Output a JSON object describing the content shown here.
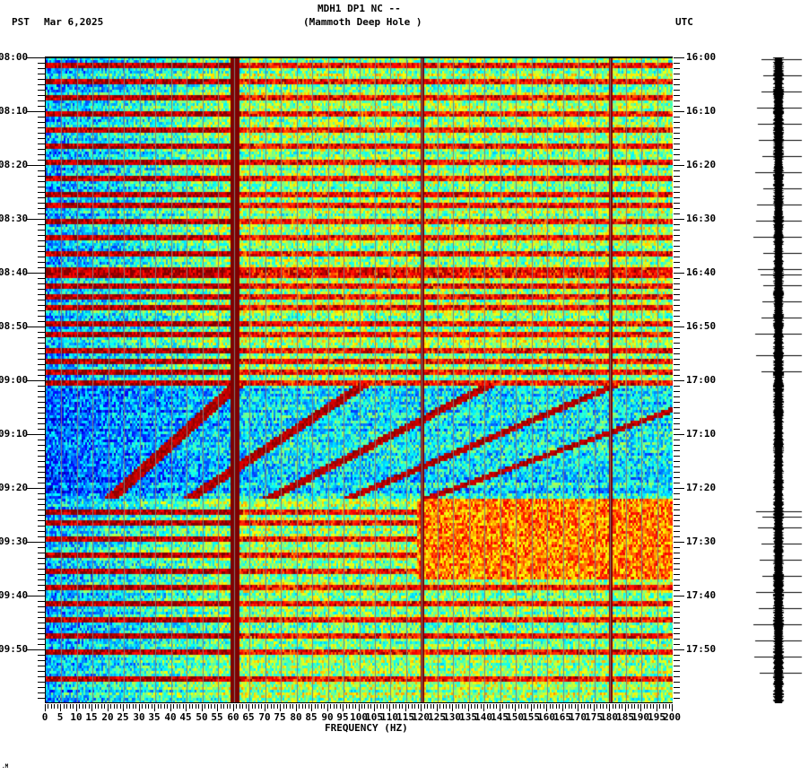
{
  "header": {
    "station": "MDH1 DP1 NC --",
    "location": "(Mammoth Deep Hole )",
    "tz_left": "PST",
    "date": "Mar 6,2025",
    "tz_right": "UTC"
  },
  "footer": {
    "corner_mark": ".M"
  },
  "chart_data": {
    "type": "heatmap",
    "title": "MDH1 DP1 NC -- (Mammoth Deep Hole )",
    "subtitle": "Mar 6,2025",
    "xlabel": "FREQUENCY (HZ)",
    "ylabel_left": "PST",
    "ylabel_right": "UTC",
    "xlim": [
      0,
      200
    ],
    "x_ticks": [
      0,
      5,
      10,
      15,
      20,
      25,
      30,
      35,
      40,
      45,
      50,
      55,
      60,
      65,
      70,
      75,
      80,
      85,
      90,
      95,
      100,
      105,
      110,
      115,
      120,
      125,
      130,
      135,
      140,
      145,
      150,
      155,
      160,
      165,
      170,
      175,
      180,
      185,
      190,
      195,
      200
    ],
    "y_ticks_left": [
      "08:00",
      "08:10",
      "08:20",
      "08:30",
      "08:40",
      "08:50",
      "09:00",
      "09:10",
      "09:20",
      "09:30",
      "09:40",
      "09:50"
    ],
    "y_ticks_right": [
      "16:00",
      "16:10",
      "16:20",
      "16:30",
      "16:40",
      "16:50",
      "17:00",
      "17:10",
      "17:20",
      "17:30",
      "17:40",
      "17:50"
    ],
    "time_range_minutes": [
      0,
      120
    ],
    "minor_tick_minutes": 1,
    "grid": {
      "vertical_every_hz": 5,
      "color": "#7f7f7f"
    },
    "colormap": "jet",
    "persistent_lines_hz": [
      60,
      120,
      180
    ],
    "horizontal_broadband_bursts_minutes": [
      1,
      4,
      7,
      10,
      13,
      16,
      19,
      22,
      25,
      27,
      30,
      33,
      36,
      39,
      40,
      42,
      44,
      46,
      49,
      51,
      54,
      56,
      58,
      60,
      84,
      86,
      89,
      92,
      95,
      98,
      101,
      104,
      107,
      110,
      115
    ],
    "quiet_interval_minutes": [
      61,
      82
    ],
    "noise_band": {
      "start_min": 82,
      "end_min": 97,
      "note": "elevated broadband energy above ~120 Hz with two Z-shaped features near 130-140 Hz and 165-175 Hz"
    },
    "seismogram_spike_minutes": [
      0,
      3,
      6,
      9,
      12,
      15,
      18,
      21,
      24,
      27,
      30,
      33,
      36,
      39,
      40,
      42,
      45,
      48,
      51,
      55,
      58,
      84,
      85,
      87,
      90,
      93,
      96,
      99,
      102,
      105,
      108,
      111,
      114
    ]
  }
}
